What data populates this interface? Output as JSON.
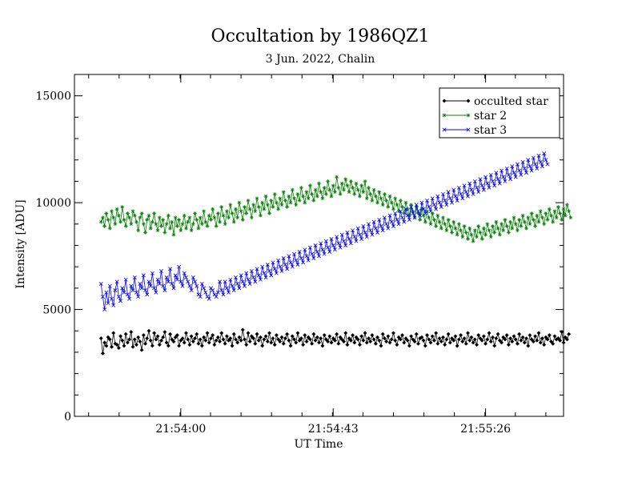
{
  "chart_data": {
    "type": "line",
    "title": "Occultation by 1986QZ1",
    "subtitle": "3 Jun. 2022, Chalin",
    "xlabel": "UT Time",
    "ylabel": "Intensity [ADU]",
    "xlim": [
      0,
      138
    ],
    "ylim": [
      0,
      16000
    ],
    "xticks": [
      {
        "value": 30,
        "label": "21:54:00"
      },
      {
        "value": 73,
        "label": "21:54:43"
      },
      {
        "value": 116,
        "label": "21:55:26"
      }
    ],
    "yticks": [
      {
        "value": 0,
        "label": "0"
      },
      {
        "value": 5000,
        "label": "5000"
      },
      {
        "value": 10000,
        "label": "10000"
      },
      {
        "value": 15000,
        "label": "15000"
      }
    ],
    "grid": false,
    "legend_position": "top-right",
    "x_start": 7.5,
    "x_step": 0.5,
    "series": [
      {
        "name": "occulted star",
        "color": "#000000",
        "marker": "diamond",
        "values": [
          3650,
          2950,
          3450,
          3300,
          3700,
          3600,
          3250,
          3900,
          3400,
          3350,
          3200,
          3750,
          3550,
          3300,
          3850,
          3450,
          3600,
          3950,
          3250,
          3600,
          3350,
          3700,
          3500,
          3100,
          3800,
          3400,
          3650,
          4000,
          3550,
          3300,
          3900,
          3600,
          3750,
          3350,
          3550,
          3700,
          3950,
          3450,
          3300,
          3850,
          3600,
          3500,
          3700,
          3800,
          3300,
          3550,
          3650,
          3450,
          3900,
          3600,
          3350,
          3750,
          3500,
          3650,
          3850,
          3400,
          3600,
          3300,
          3700,
          3550,
          3900,
          3450,
          3650,
          3800,
          3350,
          3550,
          3700,
          3500,
          3900,
          3600,
          3400,
          3750,
          3550,
          3650,
          3300,
          3850,
          3600,
          3450,
          3700,
          3550,
          4050,
          3600,
          3350,
          3900,
          3500,
          3750,
          3650,
          3400,
          3850,
          3550,
          3700,
          3300,
          3600,
          3750,
          3500,
          3900,
          3450,
          3650,
          3350,
          3800,
          3600,
          3500,
          3700,
          3400,
          3650,
          3850,
          3550,
          3300,
          3750,
          3600,
          3450,
          3900,
          3550,
          3650,
          3350,
          3800,
          3500,
          3700,
          3600,
          3400,
          3850,
          3550,
          3700,
          3450,
          3650,
          3300,
          3800,
          3600,
          3500,
          3750,
          3450,
          3650,
          3550,
          3850,
          3400,
          3700,
          3600,
          3500,
          3900,
          3350,
          3650,
          3550,
          3800,
          3450,
          3700,
          3600,
          3350,
          3750,
          3550,
          3900,
          3450,
          3650,
          3500,
          3800,
          3600,
          3400,
          3700,
          3550,
          3300,
          3850,
          3650,
          3500,
          3750,
          3450,
          3600,
          3900,
          3550,
          3350,
          3700,
          3600,
          3800,
          3450,
          3650,
          3550,
          3300,
          3750,
          3600,
          3500,
          3850,
          3400,
          3650,
          3700,
          3550,
          3300,
          3800,
          3600,
          3450,
          3750,
          3550,
          3900,
          3400,
          3650,
          3500,
          3700,
          3350,
          3600,
          3850,
          3450,
          3650,
          3550,
          3750,
          3300,
          3600,
          3800,
          3500,
          3650,
          3400,
          3900,
          3550,
          3700,
          3450,
          3600,
          3350,
          3800,
          3650,
          3550,
          3750,
          3400,
          3600,
          3900,
          3500,
          3700,
          3300,
          3650,
          3850,
          3550,
          3450,
          3700,
          3600,
          3800,
          3350,
          3650,
          3500,
          3750,
          3600,
          3400,
          3850,
          3550,
          3700,
          3450,
          3650,
          3300,
          3800,
          3600,
          3500,
          3750,
          3550,
          3900,
          3450,
          3650,
          3350,
          3700,
          3600,
          3800,
          3500,
          3400,
          3750,
          3600,
          3650,
          3550,
          3950,
          3450,
          3700,
          3600,
          3850
        ]
      },
      {
        "name": "star 2",
        "color": "#008000",
        "marker": "asterisk",
        "values": [
          9100,
          9300,
          8900,
          9500,
          9200,
          8800,
          9600,
          9300,
          9000,
          9700,
          9400,
          9100,
          9800,
          9200,
          8900,
          9500,
          9300,
          9000,
          9600,
          9400,
          9100,
          8700,
          9300,
          9500,
          9000,
          8600,
          9200,
          9400,
          8800,
          9100,
          9500,
          9000,
          8700,
          9300,
          8900,
          9200,
          8600,
          9000,
          9400,
          8800,
          9100,
          8500,
          9300,
          8900,
          9200,
          8700,
          9000,
          9400,
          8800,
          9100,
          9300,
          8700,
          9000,
          9500,
          9200,
          8800,
          9300,
          9000,
          9600,
          9100,
          8900,
          9400,
          9200,
          9700,
          9300,
          8900,
          9500,
          9100,
          9800,
          9400,
          9000,
          9600,
          9300,
          9900,
          9500,
          9100,
          9700,
          9300,
          10000,
          9600,
          9200,
          9800,
          9500,
          10100,
          9700,
          9300,
          9900,
          9600,
          10200,
          9800,
          9400,
          10000,
          9700,
          10300,
          9900,
          9500,
          10100,
          9800,
          10400,
          10000,
          9700,
          10200,
          9900,
          10500,
          10100,
          9800,
          10300,
          10000,
          10600,
          10200,
          9900,
          10400,
          10100,
          10700,
          10300,
          10000,
          10500,
          10200,
          10800,
          10400,
          10100,
          10600,
          10300,
          10900,
          10500,
          10200,
          10700,
          10400,
          11000,
          10600,
          10300,
          10800,
          10500,
          11200,
          10700,
          10400,
          10900,
          10600,
          11100,
          10800,
          10500,
          11000,
          10700,
          10400,
          10900,
          10600,
          10300,
          10800,
          10500,
          11000,
          10200,
          10700,
          10400,
          10100,
          10600,
          10300,
          10000,
          10500,
          10200,
          9900,
          10400,
          10100,
          9800,
          10300,
          10000,
          9700,
          10200,
          9900,
          9600,
          10100,
          9800,
          9500,
          10000,
          9700,
          9400,
          9900,
          9600,
          9300,
          9800,
          9500,
          9200,
          9700,
          9400,
          9100,
          9600,
          9300,
          9000,
          9500,
          9200,
          8900,
          9400,
          9100,
          8800,
          9300,
          9000,
          8700,
          9200,
          8900,
          8600,
          9100,
          8800,
          8500,
          9000,
          8700,
          8400,
          8900,
          8600,
          8300,
          8800,
          8500,
          8200,
          8700,
          8400,
          8900,
          8600,
          8300,
          8800,
          8500,
          9000,
          8700,
          8400,
          8900,
          8600,
          9100,
          8800,
          8500,
          9000,
          8700,
          9200,
          8900,
          8600,
          9100,
          8800,
          9300,
          9000,
          8700,
          9200,
          8900,
          9400,
          9100,
          8800,
          9300,
          9000,
          9500,
          9200,
          8900,
          9400,
          9100,
          9600,
          9300,
          9000,
          9500,
          9200,
          9700,
          9400,
          9100,
          9600,
          9300,
          9800,
          9500,
          9200,
          9700,
          9400,
          9900,
          9600,
          9300
        ]
      },
      {
        "name": "star 3",
        "color": "#0000ff",
        "marker": "x",
        "values": [
          6200,
          5600,
          5000,
          5800,
          5300,
          6100,
          5500,
          5200,
          5900,
          6300,
          5600,
          5400,
          6000,
          5800,
          6400,
          5700,
          5500,
          6100,
          5900,
          6500,
          5800,
          5600,
          6200,
          6000,
          6600,
          5900,
          5700,
          6300,
          6100,
          6700,
          6000,
          5800,
          6400,
          6200,
          6800,
          6100,
          5900,
          6500,
          6300,
          6900,
          6200,
          6000,
          6600,
          6400,
          7000,
          6300,
          6100,
          6700,
          6500,
          6300,
          6100,
          5900,
          6500,
          6300,
          6100,
          5700,
          5600,
          6200,
          6000,
          5800,
          5600,
          5500,
          6000,
          5900,
          5700,
          5600,
          5800,
          6300,
          5900,
          5700,
          6300,
          6000,
          5800,
          6400,
          6100,
          5900,
          6500,
          6200,
          6000,
          6600,
          6300,
          6100,
          6700,
          6400,
          6200,
          6800,
          6500,
          6300,
          6900,
          6600,
          6400,
          7000,
          6700,
          6500,
          7100,
          6800,
          6600,
          7200,
          6900,
          6700,
          7300,
          7000,
          6800,
          7400,
          7100,
          6900,
          7500,
          7200,
          7000,
          7600,
          7300,
          7100,
          7700,
          7400,
          7200,
          7800,
          7500,
          7300,
          7900,
          7600,
          7400,
          8000,
          7700,
          7500,
          8100,
          7800,
          7600,
          8200,
          7900,
          7700,
          8300,
          8000,
          7800,
          8400,
          8100,
          7900,
          8500,
          8200,
          8000,
          8600,
          8300,
          8100,
          8700,
          8400,
          8200,
          8800,
          8500,
          8300,
          8900,
          8600,
          8400,
          9000,
          8700,
          8500,
          9100,
          8800,
          8600,
          9200,
          8900,
          8700,
          9300,
          9000,
          8800,
          9400,
          9100,
          8900,
          9500,
          9200,
          9000,
          9600,
          9300,
          9100,
          9700,
          9400,
          9200,
          9800,
          9500,
          9300,
          9900,
          9600,
          9400,
          10000,
          9700,
          9500,
          10100,
          9800,
          9600,
          10200,
          9900,
          9700,
          10300,
          10000,
          9800,
          10400,
          10100,
          9900,
          10500,
          10200,
          10000,
          10600,
          10300,
          10100,
          10700,
          10400,
          10200,
          10800,
          10500,
          10300,
          10900,
          10600,
          10400,
          11000,
          10700,
          10500,
          11100,
          10800,
          10600,
          11200,
          10900,
          10700,
          11300,
          11000,
          10800,
          11400,
          11100,
          10900,
          11500,
          11200,
          11000,
          11600,
          11300,
          11100,
          11700,
          11400,
          11200,
          11800,
          11500,
          11300,
          11900,
          11600,
          11400,
          12000,
          11700,
          11500,
          12100,
          11800,
          11600,
          12200,
          11900,
          11700,
          12300,
          12000,
          11800
        ]
      }
    ]
  }
}
